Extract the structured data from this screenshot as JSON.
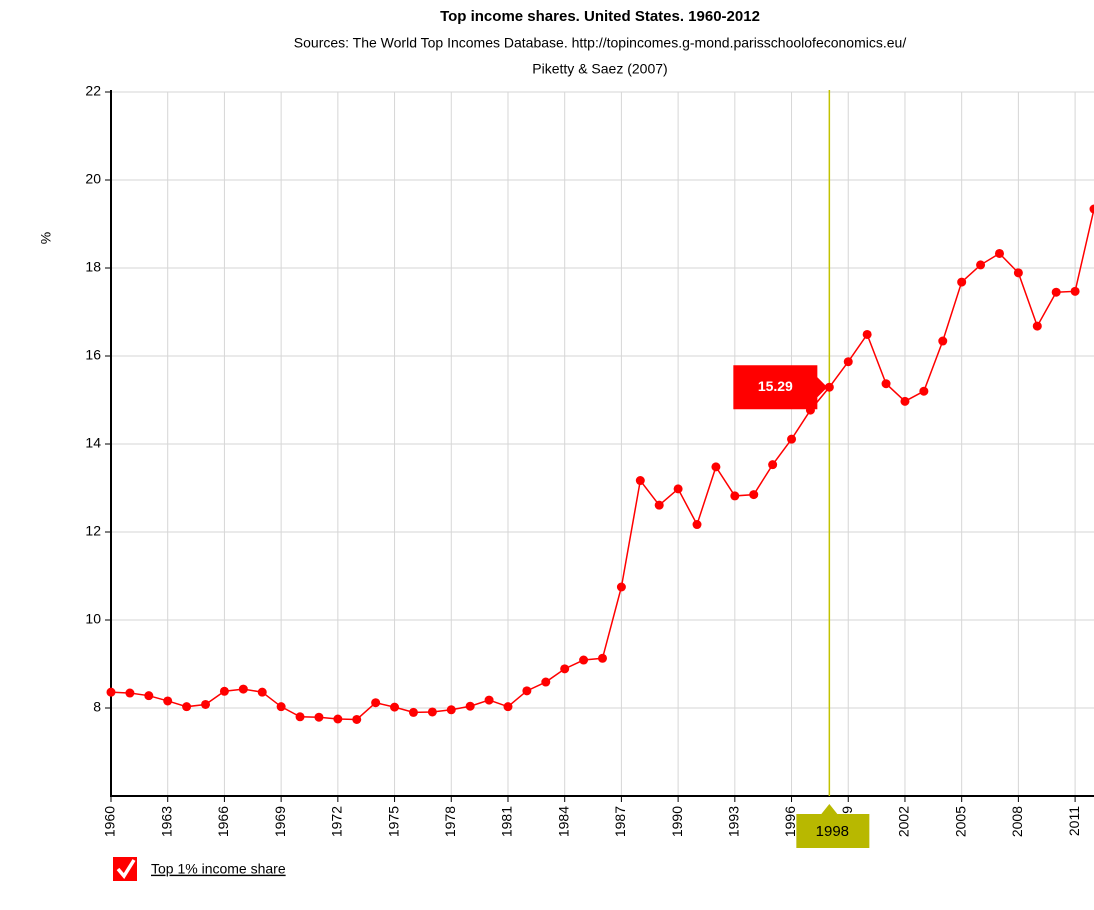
{
  "chart_data": {
    "type": "line",
    "title": "Top income shares. United States. 1960-2012",
    "subtitle": [
      "Sources: The World Top Incomes Database. http://topincomes.g-mond.parisschoolofeconomics.eu/",
      "Piketty & Saez (2007)"
    ],
    "y_label": "%",
    "x": [
      1960,
      1961,
      1962,
      1963,
      1964,
      1965,
      1966,
      1967,
      1968,
      1969,
      1970,
      1971,
      1972,
      1973,
      1974,
      1975,
      1976,
      1977,
      1978,
      1979,
      1980,
      1981,
      1982,
      1983,
      1984,
      1985,
      1986,
      1987,
      1988,
      1989,
      1990,
      1991,
      1992,
      1993,
      1994,
      1995,
      1996,
      1997,
      1998,
      1999,
      2000,
      2001,
      2002,
      2003,
      2004,
      2005,
      2006,
      2007,
      2008,
      2009,
      2010,
      2011,
      2012
    ],
    "series": [
      {
        "name": "Top 1% income share",
        "color": "#ff0000",
        "values": [
          8.36,
          8.34,
          8.28,
          8.16,
          8.03,
          8.08,
          8.38,
          8.43,
          8.36,
          8.03,
          7.8,
          7.79,
          7.75,
          7.74,
          8.12,
          8.02,
          7.9,
          7.91,
          7.96,
          8.04,
          8.18,
          8.03,
          8.39,
          8.59,
          8.89,
          9.09,
          9.13,
          10.75,
          13.17,
          12.61,
          12.98,
          12.17,
          13.48,
          12.82,
          12.85,
          13.53,
          14.11,
          14.77,
          15.29,
          15.87,
          16.49,
          15.37,
          14.97,
          15.2,
          16.34,
          17.68,
          18.07,
          18.33,
          17.89,
          16.68,
          17.45,
          17.47,
          19.34
        ]
      }
    ],
    "xlim": [
      1960,
      2012
    ],
    "xticks": [
      1960,
      1963,
      1966,
      1969,
      1972,
      1975,
      1978,
      1981,
      1984,
      1987,
      1990,
      1993,
      1996,
      1999,
      2002,
      2005,
      2008,
      2011
    ],
    "ylim": [
      6,
      22
    ],
    "yticks": [
      8,
      10,
      12,
      14,
      16,
      18,
      20,
      22
    ],
    "grid": true,
    "crosshair": {
      "x": 1998,
      "y": 15.29,
      "color": "#c2c200"
    }
  }
}
